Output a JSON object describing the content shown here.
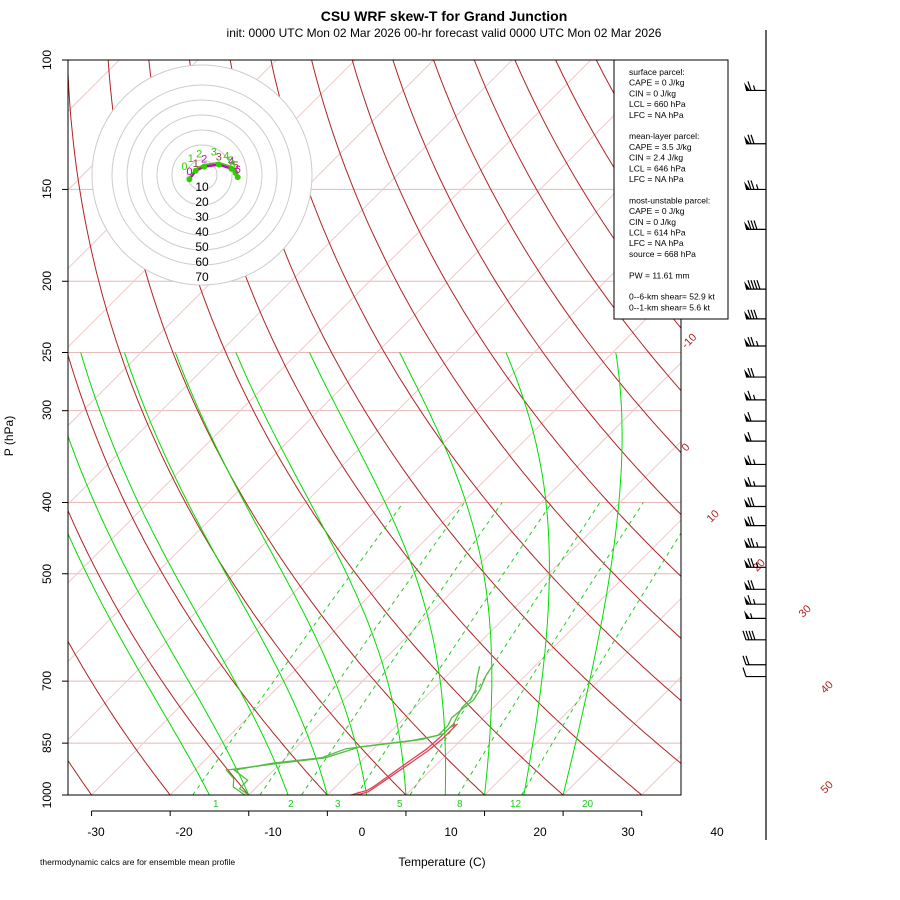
{
  "title": "CSU WRF skew-T for Grand Junction",
  "subtitle": "init: 0000 UTC Mon 02 Mar 2026     00-hr forecast valid 0000 UTC Mon 02 Mar 2026",
  "xlabel": "Temperature (C)",
  "ylabel": "P (hPa)",
  "footnote": "thermodynamic calcs are for ensemble mean profile",
  "stats_lines": [
    "surface parcel:",
    "CAPE = 0 J/kg",
    "CIN = 0 J/kg",
    "LCL = 660 hPa",
    "LFC = NA hPa",
    "",
    "mean-layer parcel:",
    "CAPE = 3.5 J/kg",
    "CIN = 2.4 J/kg",
    "LCL = 646 hPa",
    "LFC = NA hPa",
    "",
    "most-unstable parcel:",
    "CAPE = 0 J/kg",
    "CIN = 0 J/kg",
    "LCL = 614 hPa",
    "LFC = NA hPa",
    "source = 668 hPa",
    "",
    "PW =  11.61 mm",
    "",
    "0--6-km shear= 52.9 kt",
    "0--1-km shear= 5.6 kt"
  ],
  "hodograph_rings": [
    "10",
    "20",
    "30",
    "40",
    "50",
    "60",
    "70"
  ],
  "chart_data": {
    "type": "line",
    "title": "CSU WRF skew-T for Grand Junction",
    "xlabel": "Temperature (C)",
    "ylabel": "P (hPa)",
    "xlim": [
      -33,
      45
    ],
    "ylim": [
      1000,
      100
    ],
    "y_scale": "log",
    "skew": "45 degrees",
    "x_ticks": [
      "-30",
      "-20",
      "-10",
      "0",
      "10",
      "20",
      "30",
      "40"
    ],
    "y_ticks": [
      "100",
      "150",
      "200",
      "250",
      "300",
      "400",
      "500",
      "700",
      "850",
      "1000"
    ],
    "p_ticks": [
      100,
      150,
      200,
      250,
      300,
      400,
      500,
      700,
      850,
      1000
    ],
    "t_ticks": [
      -30,
      -20,
      -10,
      0,
      10,
      20,
      30,
      40
    ],
    "isotherm_labels": [
      "-10",
      "0",
      "10",
      "20",
      "30",
      "40",
      "50"
    ],
    "mixing_ratio_labels": [
      "1",
      "2",
      "3",
      "5",
      "8",
      "12",
      "20"
    ],
    "mixing_ratios": [
      1,
      2,
      3,
      5,
      8,
      12,
      20
    ],
    "colors": {
      "temperature": "#dd4455",
      "dewpoint": "#55bb44",
      "isotherm": "#b22222",
      "mixing": "#22cc22",
      "moist": "#00dd00",
      "dry": "#b22222",
      "wind": "#000000",
      "hodo_green": "#33cc00",
      "hodo_magenta": "#cc00cc",
      "hodo_brown": "#994433"
    },
    "series": [
      {
        "name": "",
        "kind": "temperature",
        "pressure": [
          800,
          815,
          840,
          870,
          900,
          980,
          990,
          1000,
          1020,
          1030,
          1035
        ],
        "temp": [
          7.5,
          7.5,
          7.5,
          7.2,
          6.6,
          5.0,
          4.8,
          3.8,
          2.0,
          1.0,
          0.4
        ]
      },
      {
        "name": "",
        "kind": "temperature",
        "pressure": [
          800,
          812,
          835,
          865,
          895,
          975,
          985,
          995,
          1015,
          1030
        ],
        "temp": [
          7.2,
          7.0,
          7.0,
          6.8,
          6.2,
          4.8,
          4.5,
          3.5,
          1.6,
          0.6
        ]
      },
      {
        "name": "",
        "kind": "dewpoint",
        "pressure": [
          668,
          690,
          720,
          740,
          760,
          780,
          800,
          825,
          840,
          860,
          890,
          905,
          925,
          950,
          975,
          1000,
          1025
        ],
        "temp": [
          3.0,
          4.0,
          5.5,
          6.0,
          6.0,
          6.5,
          7.0,
          7.0,
          5.0,
          -2.0,
          -5.0,
          -10.0,
          -16.0,
          -14.0,
          -13.0,
          -10.5,
          -9.0
        ]
      },
      {
        "name": "",
        "kind": "dewpoint",
        "pressure": [
          665,
          688,
          718,
          742,
          765,
          785,
          805,
          830,
          845,
          865,
          890,
          905,
          925,
          955,
          980,
          1000,
          1025
        ],
        "temp": [
          4.5,
          5.0,
          6.0,
          6.5,
          6.2,
          6.0,
          6.5,
          6.5,
          3.5,
          -3.5,
          -5.5,
          -11.0,
          -15.0,
          -12.0,
          -12.0,
          -10.0,
          -9.0
        ]
      }
    ],
    "hodograph": [
      {
        "label": "0",
        "u": -6,
        "v": -2
      },
      {
        "label": "1",
        "u": -3,
        "v": 2
      },
      {
        "label": "2",
        "u": 1,
        "v": 4
      },
      {
        "label": "3",
        "u": 8,
        "v": 5
      },
      {
        "label": "4",
        "u": 14,
        "v": 3
      },
      {
        "label": "5",
        "u": 16,
        "v": 1
      },
      {
        "label": "6",
        "u": 17,
        "v": -1
      }
    ],
    "wind_barbs": [
      {
        "pressure": 690,
        "speed_kt": 10,
        "dir_deg": 270
      },
      {
        "pressure": 665,
        "speed_kt": 20,
        "dir_deg": 270
      },
      {
        "pressure": 615,
        "speed_kt": 40,
        "dir_deg": 275
      },
      {
        "pressure": 575,
        "speed_kt": 55,
        "dir_deg": 275
      },
      {
        "pressure": 550,
        "speed_kt": 65,
        "dir_deg": 275
      },
      {
        "pressure": 525,
        "speed_kt": 70,
        "dir_deg": 275
      },
      {
        "pressure": 490,
        "speed_kt": 75,
        "dir_deg": 275
      },
      {
        "pressure": 460,
        "speed_kt": 75,
        "dir_deg": 275
      },
      {
        "pressure": 430,
        "speed_kt": 70,
        "dir_deg": 275
      },
      {
        "pressure": 405,
        "speed_kt": 70,
        "dir_deg": 275
      },
      {
        "pressure": 380,
        "speed_kt": 65,
        "dir_deg": 275
      },
      {
        "pressure": 355,
        "speed_kt": 65,
        "dir_deg": 275
      },
      {
        "pressure": 330,
        "speed_kt": 60,
        "dir_deg": 275
      },
      {
        "pressure": 310,
        "speed_kt": 60,
        "dir_deg": 275
      },
      {
        "pressure": 290,
        "speed_kt": 65,
        "dir_deg": 275
      },
      {
        "pressure": 270,
        "speed_kt": 70,
        "dir_deg": 275
      },
      {
        "pressure": 245,
        "speed_kt": 75,
        "dir_deg": 275
      },
      {
        "pressure": 225,
        "speed_kt": 80,
        "dir_deg": 275
      },
      {
        "pressure": 205,
        "speed_kt": 90,
        "dir_deg": 275
      },
      {
        "pressure": 170,
        "speed_kt": 80,
        "dir_deg": 275
      },
      {
        "pressure": 150,
        "speed_kt": 75,
        "dir_deg": 275
      },
      {
        "pressure": 130,
        "speed_kt": 70,
        "dir_deg": 275
      },
      {
        "pressure": 110,
        "speed_kt": 65,
        "dir_deg": 275
      }
    ]
  }
}
